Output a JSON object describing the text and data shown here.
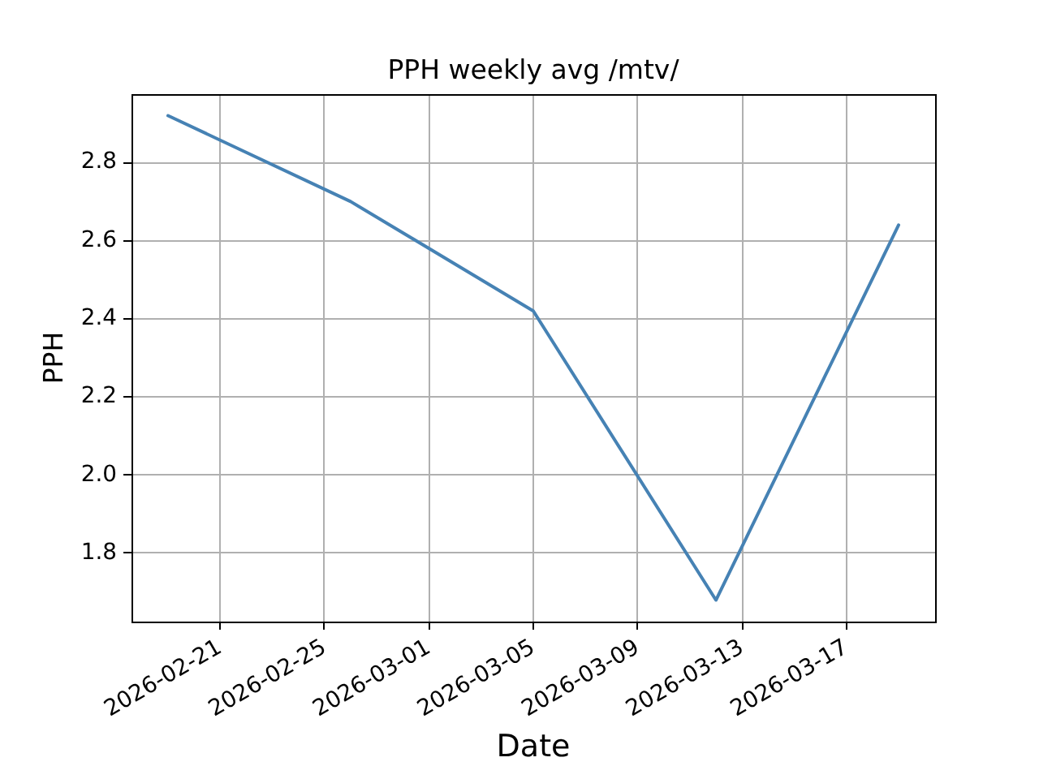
{
  "chart_data": {
    "type": "line",
    "title": "PPH weekly avg /mtv/",
    "xlabel": "Date",
    "ylabel": "PPH",
    "x": [
      "2026-02-19",
      "2026-02-26",
      "2026-03-05",
      "2026-03-12",
      "2026-03-19"
    ],
    "values": [
      2.92,
      2.7,
      2.42,
      1.68,
      2.64
    ],
    "color": "#4682b4",
    "xlim": [
      "2026-02-17T14:24",
      "2026-03-20T09:36"
    ],
    "xticks": [
      "2026-02-21",
      "2026-02-25",
      "2026-03-01",
      "2026-03-05",
      "2026-03-09",
      "2026-03-13",
      "2026-03-17"
    ],
    "ylim": [
      1.625,
      2.975
    ],
    "yticks": [
      1.8,
      {
        "value": 2,
        "label": "2.0"
      },
      2.2,
      2.4,
      2.6,
      2.8
    ],
    "grid": true,
    "legend": false
  }
}
